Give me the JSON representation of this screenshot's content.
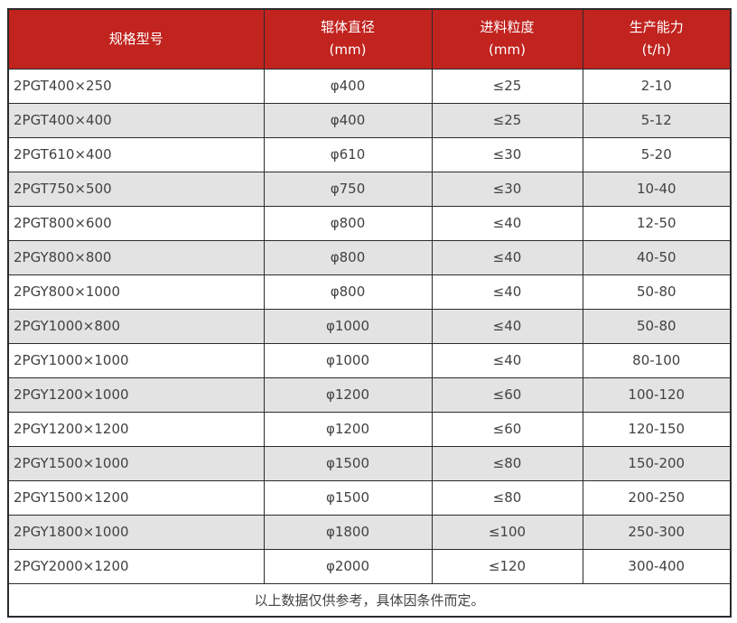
{
  "table": {
    "headers": [
      {
        "title": "规格型号",
        "unit": ""
      },
      {
        "title": "辊体直径",
        "unit": "(mm)"
      },
      {
        "title": "进料粒度",
        "unit": "(mm)"
      },
      {
        "title": "生产能力",
        "unit": "(t/h)"
      }
    ],
    "rows": [
      {
        "model": "2PGT400×250",
        "roller_diameter": "φ400",
        "feed_size": "≤25",
        "capacity": "2-10"
      },
      {
        "model": "2PGT400×400",
        "roller_diameter": "φ400",
        "feed_size": "≤25",
        "capacity": "5-12"
      },
      {
        "model": "2PGT610×400",
        "roller_diameter": "φ610",
        "feed_size": "≤30",
        "capacity": "5-20"
      },
      {
        "model": "2PGT750×500",
        "roller_diameter": "φ750",
        "feed_size": "≤30",
        "capacity": "10-40"
      },
      {
        "model": "2PGT800×600",
        "roller_diameter": "φ800",
        "feed_size": "≤40",
        "capacity": "12-50"
      },
      {
        "model": "2PGY800×800",
        "roller_diameter": "φ800",
        "feed_size": "≤40",
        "capacity": "40-50"
      },
      {
        "model": "2PGY800×1000",
        "roller_diameter": "φ800",
        "feed_size": "≤40",
        "capacity": "50-80"
      },
      {
        "model": "2PGY1000×800",
        "roller_diameter": "φ1000",
        "feed_size": "≤40",
        "capacity": "50-80"
      },
      {
        "model": "2PGY1000×1000",
        "roller_diameter": "φ1000",
        "feed_size": "≤40",
        "capacity": "80-100"
      },
      {
        "model": "2PGY1200×1000",
        "roller_diameter": "φ1200",
        "feed_size": "≤60",
        "capacity": "100-120"
      },
      {
        "model": "2PGY1200×1200",
        "roller_diameter": "φ1200",
        "feed_size": "≤60",
        "capacity": "120-150"
      },
      {
        "model": "2PGY1500×1000",
        "roller_diameter": "φ1500",
        "feed_size": "≤80",
        "capacity": "150-200"
      },
      {
        "model": "2PGY1500×1200",
        "roller_diameter": "φ1500",
        "feed_size": "≤80",
        "capacity": "200-250"
      },
      {
        "model": "2PGY1800×1000",
        "roller_diameter": "φ1800",
        "feed_size": "≤100",
        "capacity": "250-300"
      },
      {
        "model": "2PGY2000×1200",
        "roller_diameter": "φ2000",
        "feed_size": "≤120",
        "capacity": "300-400"
      }
    ],
    "footer": "以上数据仅供参考，具体因条件而定。"
  },
  "colors": {
    "header_bg": "#c1231f",
    "header_text": "#ffffff",
    "row_bg": "#ffffff",
    "row_alt_bg": "#e3e3e3",
    "border": "#2b2b2b",
    "text": "#404245"
  }
}
